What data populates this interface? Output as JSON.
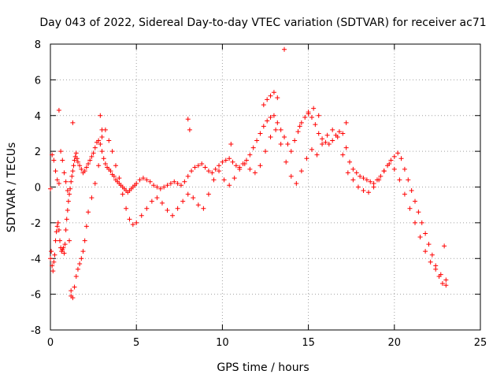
{
  "chart_data": {
    "type": "scatter",
    "title": "Day 043 of 2022, Sidereal Day-to-day VTEC variation (SDTVAR) for receiver ac71",
    "xlabel": "GPS time / hours",
    "ylabel": "SDTVAR / TECUs",
    "xlim": [
      0,
      25
    ],
    "ylim": [
      -8,
      8
    ],
    "xticks": [
      0,
      5,
      10,
      15,
      20,
      25
    ],
    "yticks": [
      -8,
      -6,
      -4,
      -2,
      0,
      2,
      4,
      6,
      8
    ],
    "grid": true,
    "marker": "+",
    "color": "#ff0000",
    "series": [
      {
        "name": "SDTVAR",
        "x": [
          0.0,
          0.05,
          0.1,
          0.15,
          0.2,
          0.25,
          0.3,
          0.35,
          0.4,
          0.45,
          0.5,
          0.55,
          0.6,
          0.65,
          0.7,
          0.75,
          0.8,
          0.85,
          0.9,
          0.95,
          1.0,
          1.05,
          1.1,
          1.15,
          1.2,
          1.25,
          1.3,
          1.35,
          1.4,
          1.45,
          1.5,
          1.55,
          1.6,
          1.7,
          1.8,
          1.9,
          2.0,
          2.1,
          2.2,
          2.3,
          2.4,
          2.5,
          2.6,
          2.7,
          2.8,
          2.9,
          3.0,
          3.1,
          3.2,
          3.3,
          3.4,
          3.5,
          3.6,
          3.7,
          3.8,
          3.9,
          4.0,
          4.1,
          4.2,
          4.3,
          4.4,
          4.5,
          4.6,
          4.7,
          4.8,
          4.9,
          5.0,
          5.2,
          5.4,
          5.6,
          5.8,
          6.0,
          6.2,
          6.4,
          6.6,
          6.8,
          7.0,
          7.2,
          7.4,
          7.6,
          7.8,
          8.0,
          8.2,
          8.4,
          8.6,
          8.8,
          9.0,
          9.2,
          9.4,
          9.6,
          9.8,
          10.0,
          10.2,
          10.4,
          10.6,
          10.8,
          11.0,
          11.2,
          11.4,
          11.6,
          11.8,
          12.0,
          12.2,
          12.4,
          12.6,
          12.8,
          13.0,
          13.2,
          13.4,
          13.6,
          13.8,
          14.0,
          14.2,
          14.4,
          14.6,
          14.8,
          15.0,
          15.2,
          15.4,
          15.6,
          15.8,
          16.0,
          16.2,
          16.4,
          16.6,
          16.8,
          17.0,
          17.2,
          17.4,
          17.6,
          17.8,
          18.0,
          18.2,
          18.4,
          18.6,
          18.8,
          19.0,
          19.2,
          19.4,
          19.6,
          19.8,
          20.0,
          20.2,
          20.4,
          20.6,
          20.8,
          21.0,
          21.2,
          21.4,
          21.6,
          21.8,
          22.0,
          22.2,
          22.4,
          22.6,
          22.8,
          23.0,
          0.0,
          0.1,
          0.2,
          0.3,
          0.4,
          0.5,
          0.6,
          0.7,
          0.8,
          0.9,
          1.0,
          1.1,
          1.2,
          1.3,
          1.4,
          1.5,
          1.6,
          1.7,
          1.8,
          1.9,
          2.0,
          2.1,
          2.2,
          2.4,
          2.6,
          2.8,
          3.0,
          3.2,
          3.4,
          3.6,
          3.8,
          4.0,
          4.2,
          4.4,
          4.6,
          4.8,
          5.0,
          5.3,
          5.6,
          5.9,
          6.2,
          6.5,
          6.8,
          7.1,
          7.4,
          7.7,
          8.0,
          8.3,
          8.6,
          8.9,
          9.2,
          9.5,
          9.8,
          10.1,
          10.4,
          10.7,
          11.0,
          11.3,
          11.6,
          11.9,
          12.2,
          12.5,
          12.8,
          13.1,
          13.4,
          13.7,
          14.0,
          14.3,
          14.6,
          14.9,
          15.2,
          15.5,
          15.8,
          16.1,
          16.4,
          16.7,
          17.0,
          17.3,
          17.6,
          17.9,
          18.2,
          18.5,
          18.8,
          19.1,
          19.4,
          19.7,
          20.0,
          20.3,
          20.6,
          20.9,
          21.2,
          21.5,
          21.8,
          22.1,
          22.4,
          22.7,
          23.0,
          0.5,
          1.2,
          1.3,
          2.9,
          3.0,
          8.0,
          8.1,
          10.5,
          12.4,
          12.6,
          12.8,
          13.0,
          13.2,
          13.6,
          14.5,
          15.0,
          15.3,
          15.6,
          17.2,
          22.9
        ],
        "y": [
          -4.0,
          -3.6,
          -4.4,
          -4.7,
          -4.2,
          -3.8,
          -3.0,
          -2.5,
          -2.2,
          -2.0,
          -2.4,
          -3.0,
          -3.4,
          -3.6,
          -3.5,
          -3.4,
          -3.7,
          -3.2,
          -2.4,
          -1.8,
          -1.3,
          -0.8,
          -0.4,
          -0.1,
          0.3,
          0.6,
          0.9,
          1.2,
          1.5,
          1.7,
          1.9,
          1.6,
          1.4,
          1.2,
          1.0,
          0.8,
          0.9,
          1.1,
          1.3,
          1.5,
          1.7,
          1.9,
          2.2,
          2.5,
          2.6,
          2.4,
          2.0,
          1.6,
          1.3,
          1.1,
          1.0,
          0.9,
          0.7,
          0.6,
          0.4,
          0.3,
          0.2,
          0.1,
          0.0,
          -0.1,
          -0.2,
          -0.3,
          -0.2,
          -0.1,
          0.0,
          0.1,
          0.2,
          0.4,
          0.5,
          0.4,
          0.3,
          0.1,
          0.0,
          -0.1,
          0.0,
          0.1,
          0.2,
          0.3,
          0.2,
          0.1,
          0.3,
          0.6,
          0.9,
          1.1,
          1.2,
          1.3,
          1.1,
          0.9,
          0.8,
          1.0,
          1.2,
          1.4,
          1.5,
          1.6,
          1.4,
          1.2,
          1.1,
          1.3,
          1.5,
          1.8,
          2.2,
          2.6,
          3.0,
          3.4,
          3.7,
          3.9,
          4.0,
          3.6,
          3.2,
          2.8,
          2.4,
          2.0,
          2.6,
          3.1,
          3.6,
          3.9,
          4.1,
          3.9,
          3.5,
          3.0,
          2.7,
          2.5,
          2.4,
          2.6,
          2.9,
          3.1,
          3.0,
          2.2,
          1.4,
          1.0,
          0.8,
          0.6,
          0.5,
          0.4,
          0.3,
          0.2,
          0.4,
          0.6,
          0.9,
          1.2,
          1.5,
          1.7,
          1.9,
          1.6,
          1.0,
          0.4,
          -0.2,
          -0.8,
          -1.4,
          -2.0,
          -2.6,
          -3.2,
          -3.8,
          -4.4,
          -5.0,
          -5.4,
          -5.5,
          -0.1,
          1.8,
          1.5,
          0.9,
          0.4,
          0.2,
          2.0,
          1.5,
          0.8,
          0.3,
          -0.2,
          -3.0,
          -5.8,
          -6.2,
          -5.6,
          -5.0,
          -4.6,
          -4.3,
          -4.0,
          -3.6,
          -3.0,
          -2.2,
          -1.4,
          -0.6,
          0.2,
          1.2,
          2.8,
          3.2,
          2.6,
          2.0,
          1.2,
          0.5,
          -0.4,
          -1.2,
          -1.8,
          -2.1,
          -2.0,
          -1.6,
          -1.2,
          -0.8,
          -0.6,
          -0.9,
          -1.3,
          -1.6,
          -1.2,
          -0.8,
          -0.4,
          -0.6,
          -1.0,
          -1.2,
          -0.4,
          0.4,
          0.9,
          0.4,
          0.1,
          0.5,
          1.0,
          1.3,
          1.0,
          0.8,
          1.2,
          2.0,
          2.8,
          3.2,
          2.4,
          1.4,
          0.6,
          0.2,
          0.9,
          1.6,
          2.1,
          1.8,
          2.4,
          2.9,
          3.2,
          2.8,
          1.8,
          0.8,
          0.4,
          0.0,
          -0.2,
          -0.3,
          0.0,
          0.4,
          0.9,
          1.3,
          1.0,
          0.4,
          -0.4,
          -1.2,
          -2.0,
          -2.8,
          -3.6,
          -4.2,
          -4.6,
          -4.9,
          -5.2,
          4.3,
          -6.1,
          3.6,
          4.0,
          3.2,
          3.8,
          3.2,
          2.4,
          4.6,
          4.9,
          5.1,
          5.3,
          5.0,
          7.7,
          3.4,
          4.2,
          4.4,
          4.0,
          3.6,
          -3.3
        ]
      }
    ]
  }
}
